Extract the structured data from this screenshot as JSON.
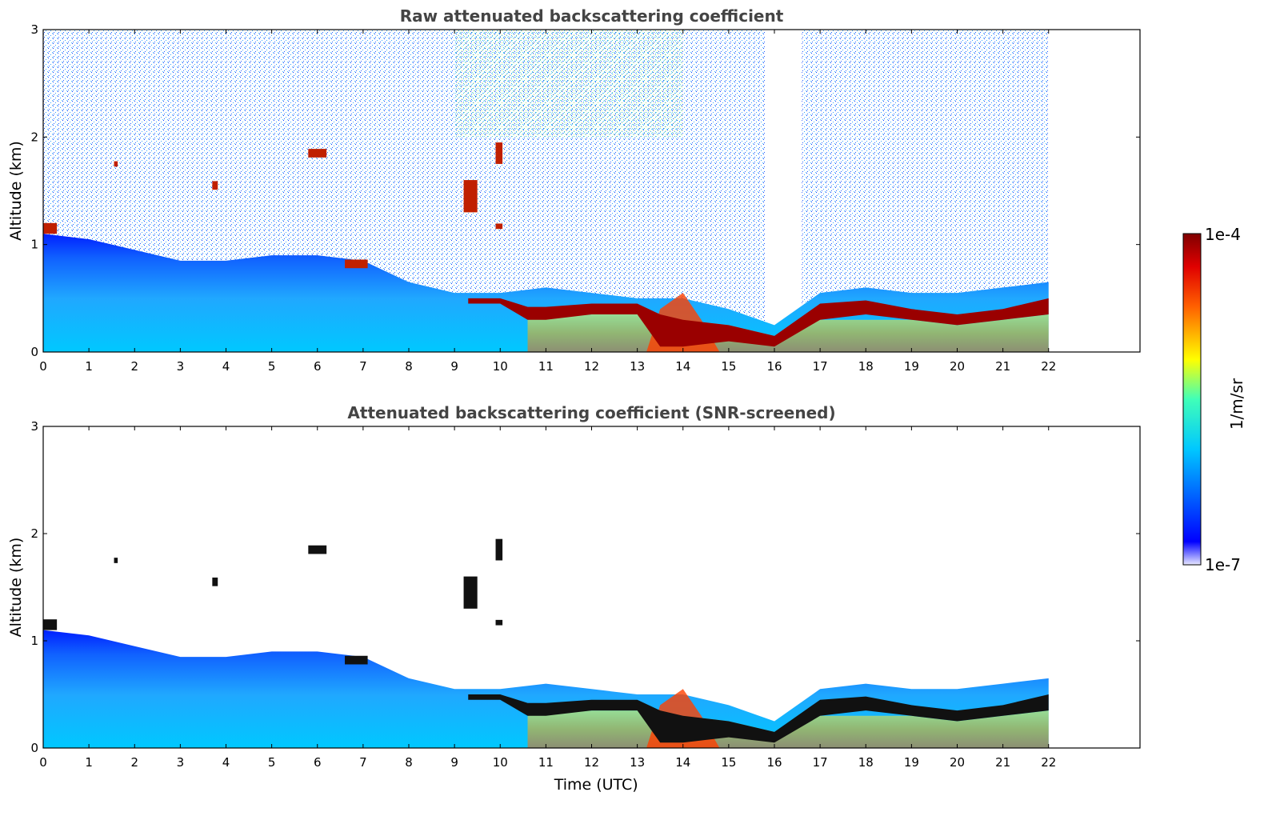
{
  "chart_data": [
    {
      "type": "heatmap",
      "title": "Raw attenuated backscattering coefficient",
      "xlabel": "",
      "ylabel": "Altitude (km)",
      "xlim": [
        0,
        24
      ],
      "ylim": [
        0,
        3
      ],
      "x_ticks": [
        0,
        1,
        2,
        3,
        4,
        5,
        6,
        7,
        8,
        9,
        10,
        11,
        12,
        13,
        14,
        15,
        16,
        17,
        18,
        19,
        20,
        21,
        22
      ],
      "y_ticks": [
        0,
        1,
        2,
        3
      ],
      "data_end_hour": 22,
      "screened": false,
      "layers": [
        {
          "feature": "boundary layer top",
          "hours": [
            0,
            1,
            2,
            3,
            4,
            5,
            6,
            7,
            8,
            9,
            10,
            11,
            12,
            13,
            14,
            15,
            16,
            17,
            18,
            19,
            20,
            21,
            22
          ],
          "top_km": [
            1.1,
            1.05,
            0.95,
            0.85,
            0.85,
            0.9,
            0.9,
            0.85,
            0.65,
            0.55,
            0.55,
            0.6,
            0.55,
            0.5,
            0.5,
            0.4,
            0.25,
            0.55,
            0.6,
            0.55,
            0.55,
            0.6,
            0.65
          ]
        },
        {
          "feature": "cloud layer",
          "hours": [
            9.3,
            10,
            10.6,
            11,
            12,
            13,
            13.5,
            14,
            15,
            16,
            17,
            18,
            19,
            20,
            21,
            22
          ],
          "base_km": [
            0.45,
            0.45,
            0.3,
            0.3,
            0.35,
            0.35,
            0.05,
            0.05,
            0.1,
            0.05,
            0.3,
            0.35,
            0.3,
            0.25,
            0.3,
            0.35
          ],
          "top_km": [
            0.5,
            0.5,
            0.42,
            0.42,
            0.45,
            0.45,
            0.35,
            0.3,
            0.25,
            0.15,
            0.45,
            0.48,
            0.4,
            0.35,
            0.4,
            0.5
          ]
        }
      ]
    },
    {
      "type": "heatmap",
      "title": "Attenuated backscattering coefficient (SNR-screened)",
      "xlabel": "Time (UTC)",
      "ylabel": "Altitude (km)",
      "xlim": [
        0,
        24
      ],
      "ylim": [
        0,
        3
      ],
      "x_ticks": [
        0,
        1,
        2,
        3,
        4,
        5,
        6,
        7,
        8,
        9,
        10,
        11,
        12,
        13,
        14,
        15,
        16,
        17,
        18,
        19,
        20,
        21,
        22
      ],
      "y_ticks": [
        0,
        1,
        2,
        3
      ],
      "data_end_hour": 22,
      "screened": true
    }
  ],
  "colorbar": {
    "label": "1/m/sr",
    "max_label": "1e-4",
    "min_label": "1e-7",
    "colormap": "jet",
    "scale": "log"
  }
}
